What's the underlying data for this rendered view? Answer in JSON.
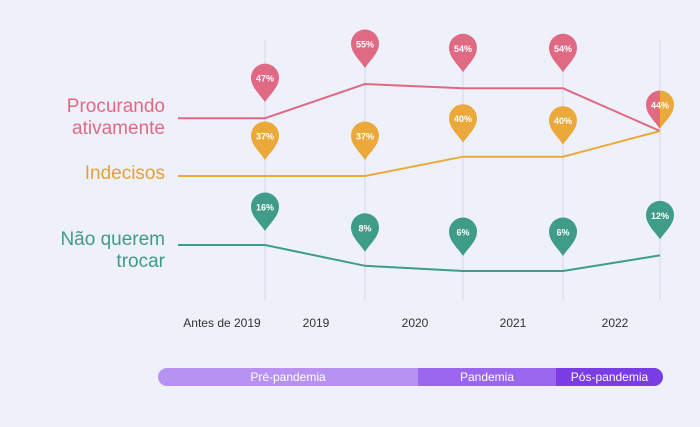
{
  "chart_data": {
    "type": "line",
    "categories": [
      "Antes de 2019",
      "2019",
      "2020",
      "2021",
      "2022"
    ],
    "series": [
      {
        "name": "Procurando\nativamente",
        "color": "#e06a84",
        "values": [
          47,
          55,
          54,
          54,
          44
        ],
        "value_labels": [
          "47%",
          "55%",
          "54%",
          "54%",
          "44%"
        ]
      },
      {
        "name": "Indecisos",
        "color": "#eba93c",
        "values": [
          37,
          37,
          40,
          40,
          44
        ],
        "value_labels": [
          "37%",
          "37%",
          "40%",
          "40%",
          "44%"
        ]
      },
      {
        "name": "Não querem\ntrocar",
        "color": "#3e9c88",
        "values": [
          16,
          8,
          6,
          6,
          12
        ],
        "value_labels": [
          "16%",
          "8%",
          "6%",
          "6%",
          "12%"
        ]
      }
    ],
    "grid": "vertical",
    "legend": "left"
  },
  "timeline": {
    "phases": [
      {
        "label": "Pré-pandemia",
        "color": "#b792f2"
      },
      {
        "label": "Pandemia",
        "color": "#9a66ee"
      },
      {
        "label": "Pós-pandemia",
        "color": "#7a3ce4"
      }
    ]
  }
}
